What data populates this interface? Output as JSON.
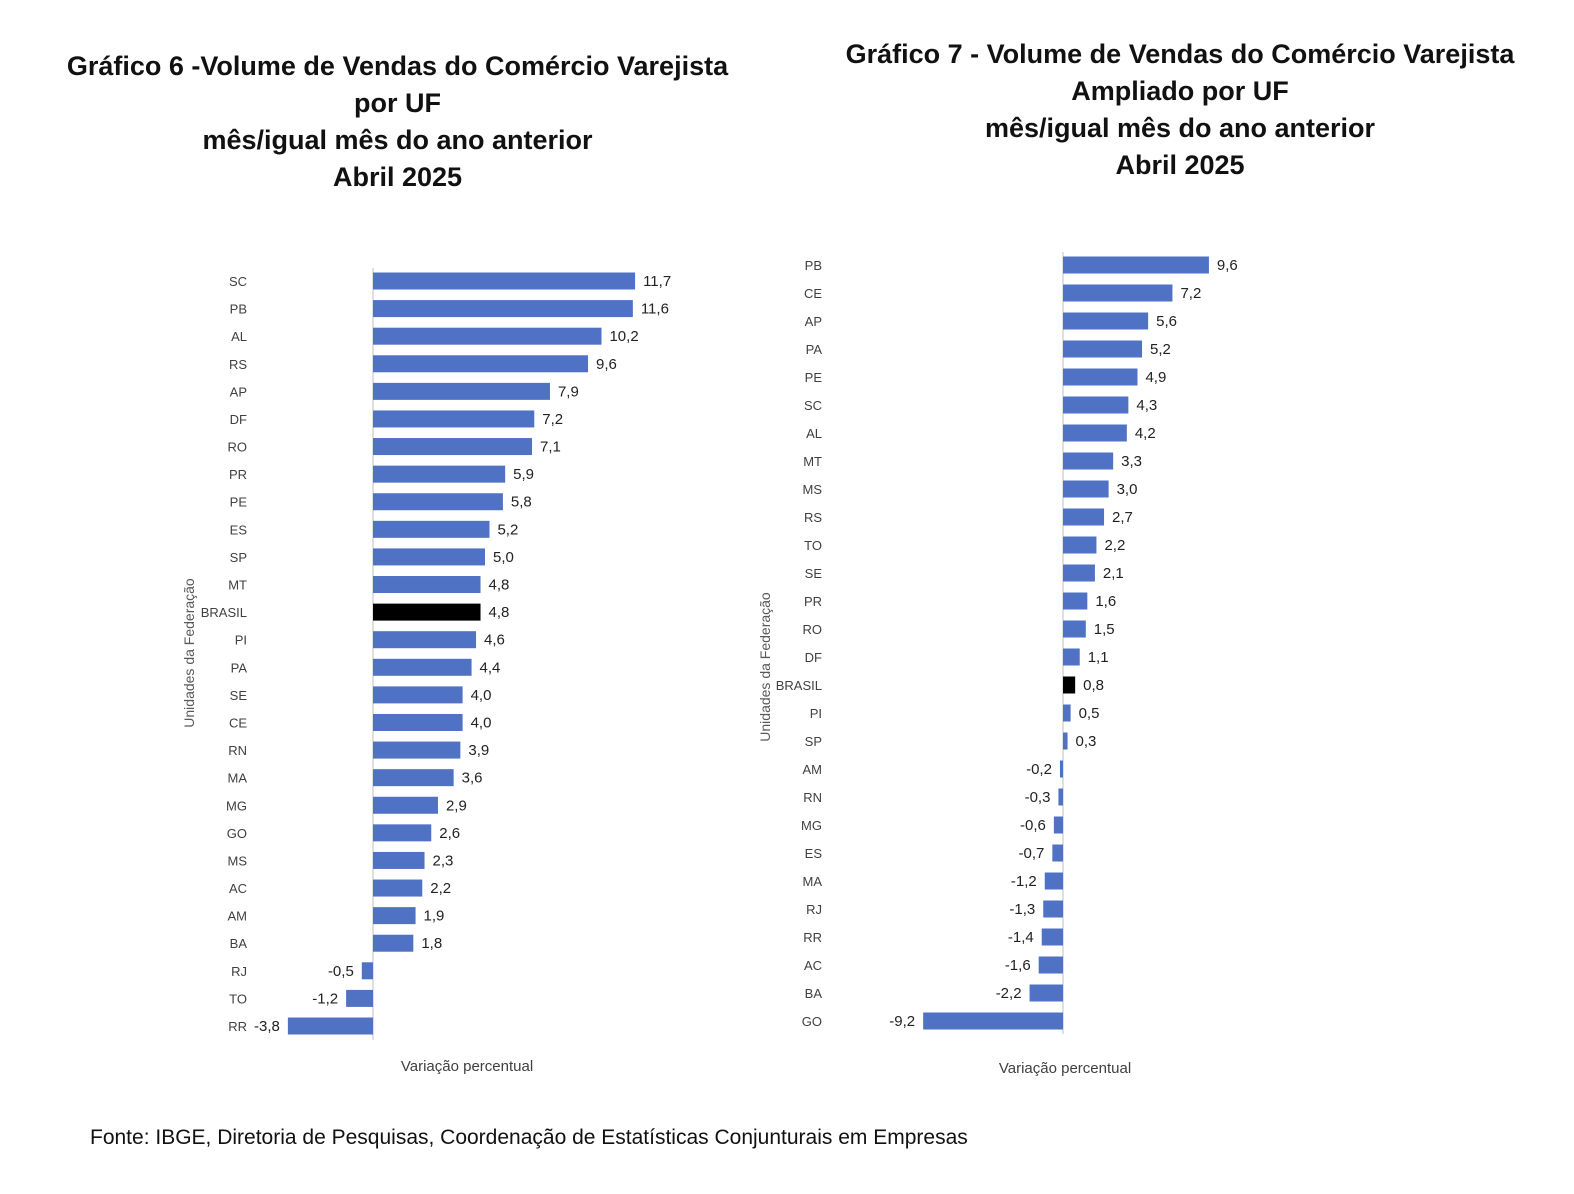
{
  "chart_data": [
    {
      "type": "bar",
      "orientation": "horizontal",
      "title": [
        "Gráfico 6 -Volume de Vendas do Comércio Varejista",
        "por UF",
        "mês/igual mês do ano anterior",
        "Abril 2025"
      ],
      "xlabel": "Variação percentual",
      "ylabel": "Unidades da Federação",
      "categories": [
        "SC",
        "PB",
        "AL",
        "RS",
        "AP",
        "DF",
        "RO",
        "PR",
        "PE",
        "ES",
        "SP",
        "MT",
        "BRASIL",
        "PI",
        "PA",
        "SE",
        "CE",
        "RN",
        "MA",
        "MG",
        "GO",
        "MS",
        "AC",
        "AM",
        "BA",
        "RJ",
        "TO",
        "RR"
      ],
      "values": [
        11.7,
        11.6,
        10.2,
        9.6,
        7.9,
        7.2,
        7.1,
        5.9,
        5.8,
        5.2,
        5.0,
        4.8,
        4.8,
        4.6,
        4.4,
        4.0,
        4.0,
        3.9,
        3.6,
        2.9,
        2.6,
        2.3,
        2.2,
        1.9,
        1.8,
        -0.5,
        -1.2,
        -3.8
      ],
      "labels": [
        "11,7",
        "11,6",
        "10,2",
        "9,6",
        "7,9",
        "7,2",
        "7,1",
        "5,9",
        "5,8",
        "5,2",
        "5,0",
        "4,8",
        "4,8",
        "4,6",
        "4,4",
        "4,0",
        "4,0",
        "3,9",
        "3,6",
        "2,9",
        "2,6",
        "2,3",
        "2,2",
        "1,9",
        "1,8",
        "-0,5",
        "-1,2",
        "-3,8"
      ],
      "highlight": "BRASIL",
      "bar_color": "#4f72c4",
      "highlight_color": "#000000",
      "grid": false
    },
    {
      "type": "bar",
      "orientation": "horizontal",
      "title": [
        "Gráfico 7 - Volume de Vendas do Comércio Varejista",
        "Ampliado por UF",
        "mês/igual mês do ano anterior",
        "Abril 2025"
      ],
      "xlabel": "Variação percentual",
      "ylabel": "Unidades da Federação",
      "categories": [
        "PB",
        "CE",
        "AP",
        "PA",
        "PE",
        "SC",
        "AL",
        "MT",
        "MS",
        "RS",
        "TO",
        "SE",
        "PR",
        "RO",
        "DF",
        "BRASIL",
        "PI",
        "SP",
        "AM",
        "RN",
        "MG",
        "ES",
        "MA",
        "RJ",
        "RR",
        "AC",
        "BA",
        "GO"
      ],
      "values": [
        9.6,
        7.2,
        5.6,
        5.2,
        4.9,
        4.3,
        4.2,
        3.3,
        3.0,
        2.7,
        2.2,
        2.1,
        1.6,
        1.5,
        1.1,
        0.8,
        0.5,
        0.3,
        -0.2,
        -0.3,
        -0.6,
        -0.7,
        -1.2,
        -1.3,
        -1.4,
        -1.6,
        -2.2,
        -9.2
      ],
      "labels": [
        "9,6",
        "7,2",
        "5,6",
        "5,2",
        "4,9",
        "4,3",
        "4,2",
        "3,3",
        "3,0",
        "2,7",
        "2,2",
        "2,1",
        "1,6",
        "1,5",
        "1,1",
        "0,8",
        "0,5",
        "0,3",
        "-0,2",
        "-0,3",
        "-0,6",
        "-0,7",
        "-1,2",
        "-1,3",
        "-1,4",
        "-1,6",
        "-2,2",
        "-9,2"
      ],
      "highlight": "BRASIL",
      "bar_color": "#4f72c4",
      "highlight_color": "#000000",
      "grid": false
    }
  ],
  "source": "Fonte: IBGE, Diretoria de Pesquisas, Coordenação de Estatísticas Conjunturais em Empresas"
}
